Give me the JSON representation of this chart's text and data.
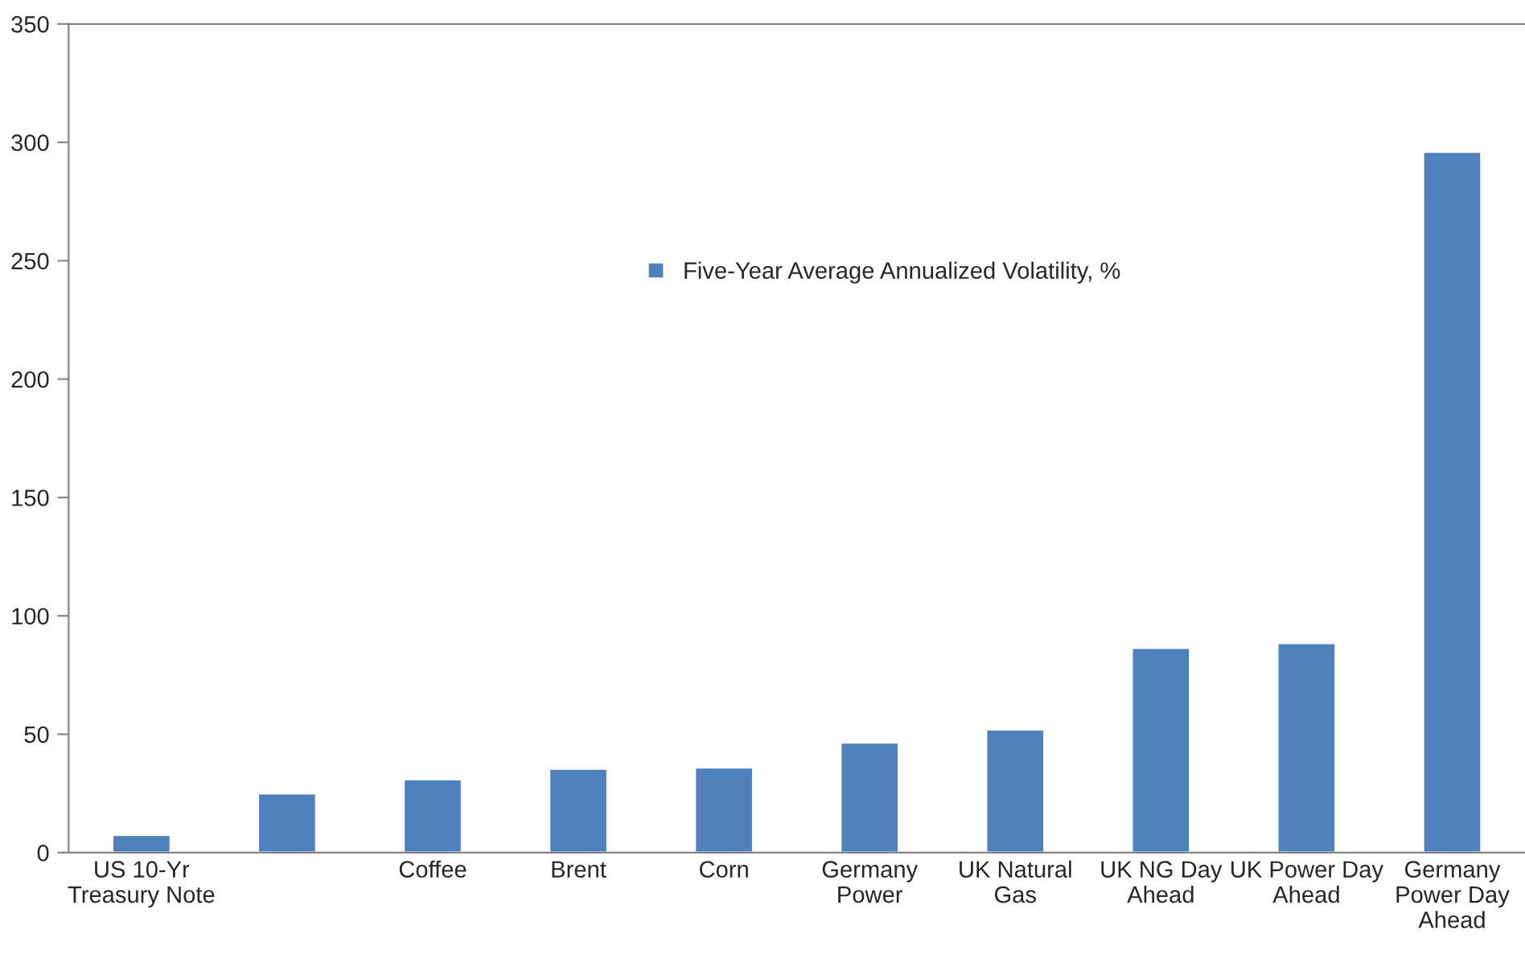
{
  "chart_data": {
    "type": "bar",
    "categories": [
      "US 10-Yr\nTreasury Note",
      null,
      "Coffee",
      "Brent",
      "Corn",
      "Germany\nPower",
      "UK Natural\nGas",
      "UK NG Day\nAhead",
      "UK Power Day\nAhead",
      "Germany\nPower Day\nAhead"
    ],
    "series": [
      {
        "name": "Five-Year Average Annualized Volatility, %",
        "color": "#4f81bd",
        "values": [
          7.5,
          25,
          31,
          35.5,
          36,
          46.5,
          52,
          86.5,
          88.5,
          296
        ]
      }
    ],
    "ylim": [
      0,
      350
    ],
    "yticks": [
      0,
      50,
      100,
      150,
      200,
      250,
      300,
      350
    ],
    "grid": false,
    "legend": "center"
  }
}
